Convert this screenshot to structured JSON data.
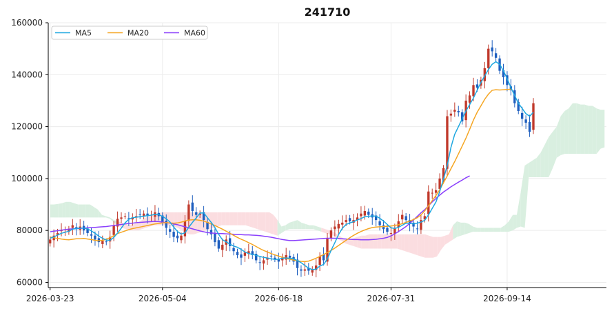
{
  "chart_data": {
    "type": "candlestick",
    "title": "241710",
    "xlabel": "",
    "ylabel": "",
    "ylim": [
      58000,
      160000
    ],
    "yticks": [
      60000,
      80000,
      100000,
      120000,
      140000,
      160000
    ],
    "xticks": [
      {
        "label": "2026-03-23",
        "index": 0
      },
      {
        "label": "2026-05-04",
        "index": 30
      },
      {
        "label": "2026-06-18",
        "index": 61
      },
      {
        "label": "2026-07-31",
        "index": 91
      },
      {
        "label": "2026-09-14",
        "index": 122
      }
    ],
    "n_slots": 149,
    "grid": true,
    "legend": {
      "placement": "top-left",
      "entries": [
        "MA5",
        "MA20",
        "MA60"
      ]
    },
    "colors": {
      "up": "#c0392b",
      "down": "#1f5fbf",
      "ma5": "#1ea7e0",
      "ma20": "#f5a623",
      "ma60": "#8a3ffc",
      "cloud_bull": "#d9efe0",
      "cloud_bear": "#fbdde0"
    },
    "closes": [
      76500,
      78000,
      79000,
      80000,
      79500,
      80500,
      82000,
      80500,
      81500,
      80000,
      79000,
      78000,
      76500,
      75500,
      76000,
      75500,
      77500,
      82000,
      84500,
      85000,
      85500,
      84500,
      85000,
      85500,
      86000,
      86500,
      85500,
      86000,
      87000,
      85500,
      83000,
      81000,
      79500,
      77500,
      77000,
      78000,
      83500,
      90000,
      87500,
      86000,
      86500,
      84000,
      80500,
      78500,
      75500,
      73000,
      74500,
      76500,
      74000,
      72000,
      70500,
      69500,
      71500,
      72000,
      70500,
      68500,
      67500,
      68500,
      69500,
      70000,
      69000,
      68000,
      69500,
      70500,
      69500,
      68000,
      65500,
      64500,
      65000,
      64500,
      65000,
      66500,
      70000,
      68500,
      77000,
      80000,
      81500,
      82500,
      83000,
      84000,
      83500,
      84000,
      85000,
      86500,
      87500,
      86000,
      85000,
      84000,
      82000,
      80500,
      79500,
      79000,
      81000,
      83500,
      86000,
      84000,
      82500,
      81500,
      80500,
      84000,
      85500,
      95000,
      94500,
      95500,
      100000,
      104000,
      124000,
      125000,
      126500,
      125500,
      122000,
      130000,
      132000,
      136000,
      135000,
      138000,
      142500,
      150000,
      149000,
      146500,
      141500,
      139000,
      136000,
      134000,
      129000,
      126000,
      123000,
      121500,
      118000,
      129000
    ],
    "ma5": [
      77000,
      77500,
      78200,
      78900,
      79300,
      79700,
      80500,
      80700,
      80900,
      80900,
      80600,
      79800,
      78900,
      77800,
      77000,
      76300,
      76200,
      77300,
      79000,
      80900,
      82900,
      84300,
      84900,
      85100,
      85300,
      85500,
      85700,
      85900,
      86200,
      86100,
      85400,
      84500,
      83200,
      81300,
      79600,
      78600,
      79100,
      81200,
      83100,
      84800,
      86700,
      86800,
      84900,
      83100,
      81100,
      78500,
      76400,
      75600,
      74700,
      74000,
      73500,
      72700,
      71700,
      71100,
      70800,
      70400,
      70000,
      69600,
      69400,
      69100,
      68800,
      68900,
      69300,
      69400,
      69300,
      69100,
      68400,
      67600,
      66500,
      65500,
      64900,
      65100,
      66300,
      66900,
      69000,
      72300,
      75300,
      78400,
      80800,
      82300,
      82900,
      83400,
      84000,
      84600,
      85300,
      85400,
      85600,
      85500,
      84700,
      83600,
      82300,
      81000,
      80800,
      81200,
      82000,
      82800,
      82700,
      82500,
      82800,
      83200,
      83900,
      86000,
      88500,
      91000,
      95000,
      99800,
      105000,
      112000,
      117000,
      120000,
      123000,
      126000,
      128500,
      131000,
      134000,
      137000,
      139500,
      142000,
      144000,
      145000,
      144000,
      141500,
      138500,
      135000,
      132000,
      129000,
      127000,
      125000,
      124000,
      125500
    ],
    "ma20_start": 0,
    "ma20": [
      77500,
      77200,
      76900,
      76700,
      76500,
      76400,
      76600,
      76800,
      76800,
      76900,
      76700,
      76500,
      76200,
      76000,
      76200,
      76600,
      77200,
      78000,
      78800,
      79300,
      79800,
      80300,
      80700,
      81000,
      81300,
      81600,
      81900,
      82200,
      82500,
      82700,
      82900,
      83000,
      82900,
      82800,
      82900,
      83200,
      83600,
      84000,
      84100,
      84100,
      83900,
      83600,
      83100,
      82500,
      81900,
      81200,
      80500,
      79700,
      78900,
      78100,
      77300,
      76600,
      76000,
      75300,
      74600,
      73800,
      73000,
      72300,
      71700,
      71100,
      70600,
      70100,
      69700,
      69300,
      68900,
      68600,
      68300,
      68100,
      68000,
      68200,
      68700,
      69300,
      70000,
      70700,
      71500,
      72300,
      73200,
      74200,
      75200,
      76200,
      77200,
      78100,
      78900,
      79600,
      80200,
      80700,
      81100,
      81300,
      81400,
      81500,
      81600,
      81700,
      81900,
      82200,
      82600,
      83100,
      83600,
      84200,
      84900,
      86000,
      87500,
      89500,
      91500,
      93500,
      95700,
      98300,
      101000,
      103800,
      106500,
      109500,
      112500,
      115500,
      119000,
      122500,
      125500,
      128000,
      130500,
      132500,
      134000,
      134200,
      134100,
      134200,
      134300,
      134400
    ],
    "ma60_start": 0,
    "ma60": [
      79500,
      79700,
      79900,
      80100,
      80300,
      80500,
      80600,
      80700,
      80800,
      80900,
      81000,
      81100,
      81200,
      81300,
      81400,
      81500,
      81700,
      81900,
      82100,
      82300,
      82500,
      82700,
      82800,
      83000,
      83100,
      83200,
      83300,
      83400,
      83500,
      83400,
      83200,
      83000,
      82800,
      82500,
      82200,
      81800,
      81400,
      81000,
      80600,
      80200,
      79800,
      79500,
      79200,
      79000,
      78900,
      78800,
      78800,
      78700,
      78600,
      78500,
      78400,
      78400,
      78300,
      78300,
      78200,
      78100,
      78000,
      77800,
      77600,
      77400,
      77100,
      76800,
      76500,
      76300,
      76100,
      76100,
      76200,
      76300,
      76400,
      76500,
      76600,
      76700,
      76800,
      76900,
      77000,
      77000,
      77000,
      76900,
      76800,
      76700,
      76600,
      76500,
      76500,
      76400,
      76400,
      76400,
      76500,
      76600,
      76800,
      77000,
      77300,
      77900,
      78700,
      79600,
      80500,
      81500,
      82700,
      84000,
      85400,
      86800,
      88000,
      89500,
      91000,
      92300,
      93600,
      94800,
      95800,
      96800,
      97700,
      98600,
      99400,
      100300,
      101000
    ],
    "cloud": {
      "top": [
        90000,
        90000,
        90200,
        90500,
        91000,
        91000,
        90500,
        90000,
        90000,
        90000,
        90000,
        89000,
        88000,
        86000,
        85500,
        85000,
        84000,
        83500,
        83000,
        82500,
        82000,
        82500,
        83000,
        84000,
        85000,
        85500,
        86000,
        86500,
        87000,
        87000,
        87000,
        87000,
        87000,
        87000,
        87000,
        87000,
        87000,
        87000,
        87000,
        87000,
        87000,
        87000,
        87000,
        87000,
        87000,
        87000,
        87000,
        87000,
        87000,
        87000,
        87000,
        87000,
        87000,
        87000,
        87000,
        87000,
        86000,
        84000,
        81500,
        82000,
        83000,
        83500,
        84000,
        83000,
        82500,
        82000,
        82000,
        81500,
        81000,
        80500,
        80000,
        79500,
        78500,
        77500,
        76500,
        76500,
        77000,
        77500,
        78000,
        78000,
        78500,
        78500,
        78500,
        78500,
        78500,
        78500,
        78500,
        78500,
        78500,
        78500,
        78500,
        78500,
        78500,
        78500,
        78500,
        78000,
        77500,
        77500,
        77500,
        78000,
        78500,
        82000,
        83500,
        83000,
        83000,
        82500,
        81500,
        81000,
        81000,
        81000,
        81000,
        81000,
        81000,
        81000,
        82000,
        83500,
        86000,
        86000,
        95000,
        105000,
        106000,
        107000,
        108000,
        110000,
        113000,
        116000,
        118000,
        120000,
        124000,
        126000,
        127000,
        129000,
        129000,
        128500,
        128500,
        128000,
        128000,
        127000,
        126500,
        126500
      ],
      "bottom": [
        85000,
        85000,
        85000,
        85000,
        85000,
        85000,
        85000,
        85000,
        85000,
        85000,
        85000,
        85000,
        85000,
        85000,
        85000,
        84500,
        83000,
        82000,
        81000,
        80500,
        80000,
        80000,
        80000,
        80500,
        81000,
        81500,
        82000,
        82000,
        82000,
        82000,
        82000,
        81500,
        81000,
        80000,
        79000,
        78500,
        78500,
        79000,
        79500,
        80000,
        80500,
        81000,
        81500,
        82000,
        82000,
        82000,
        82000,
        82000,
        82000,
        82000,
        81500,
        81000,
        80500,
        80000,
        79500,
        79000,
        78500,
        78000,
        79000,
        80000,
        80500,
        80500,
        80500,
        80500,
        80500,
        80500,
        80500,
        80000,
        79500,
        79000,
        78500,
        78000,
        77000,
        76000,
        75000,
        74500,
        74000,
        73500,
        73000,
        73000,
        73000,
        73000,
        73000,
        73000,
        73000,
        73000,
        73000,
        73000,
        72500,
        72000,
        71500,
        71000,
        70500,
        70000,
        69500,
        69500,
        69500,
        70000,
        72500,
        74500,
        75500,
        76500,
        77500,
        78000,
        78500,
        79000,
        79500,
        79500,
        79500,
        79500,
        79500,
        79500,
        79500,
        79500,
        79500,
        79500,
        80000,
        81000,
        81500,
        81000,
        100500,
        100500,
        100500,
        100500,
        100500,
        100500,
        104000,
        108000,
        109000,
        109500,
        109500,
        109500,
        109500,
        109500,
        109500,
        109500,
        109500,
        109500,
        111500,
        112000
      ],
      "bear_ranges": [
        [
          17,
          56
        ],
        [
          68,
          100
        ]
      ]
    }
  }
}
